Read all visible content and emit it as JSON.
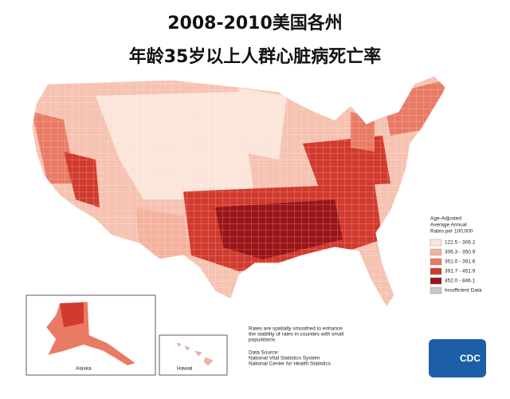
{
  "title": {
    "line1": "2008-2010美国各州",
    "line2": "年龄35岁以上人群心脏病死亡率"
  },
  "legend": {
    "title_lines": [
      "Age-Adjusted",
      "Average Annual",
      "Rates per 100,000"
    ],
    "items": [
      {
        "label": "122.5 - 306.2",
        "color": "#fbe4da"
      },
      {
        "label": "306.3 - 350.9",
        "color": "#f5b29e"
      },
      {
        "label": "351.0 - 391.6",
        "color": "#e97a64"
      },
      {
        "label": "391.7 - 451.9",
        "color": "#d13a2e"
      },
      {
        "label": "452.0 - 846.1",
        "color": "#9a1418"
      },
      {
        "label": "Insufficient Data",
        "color": "#c8c8c8"
      }
    ]
  },
  "note": [
    "Rates are spatially smoothed to enhance",
    "the stability of rates in counties with small",
    "populations"
  ],
  "source": [
    "Data Source:",
    "National Vital Statistics System",
    "National Center for Health Statistics"
  ],
  "insets": {
    "alaska": "Alaska",
    "hawaii": "Hawaii"
  },
  "logo": "CDC"
}
